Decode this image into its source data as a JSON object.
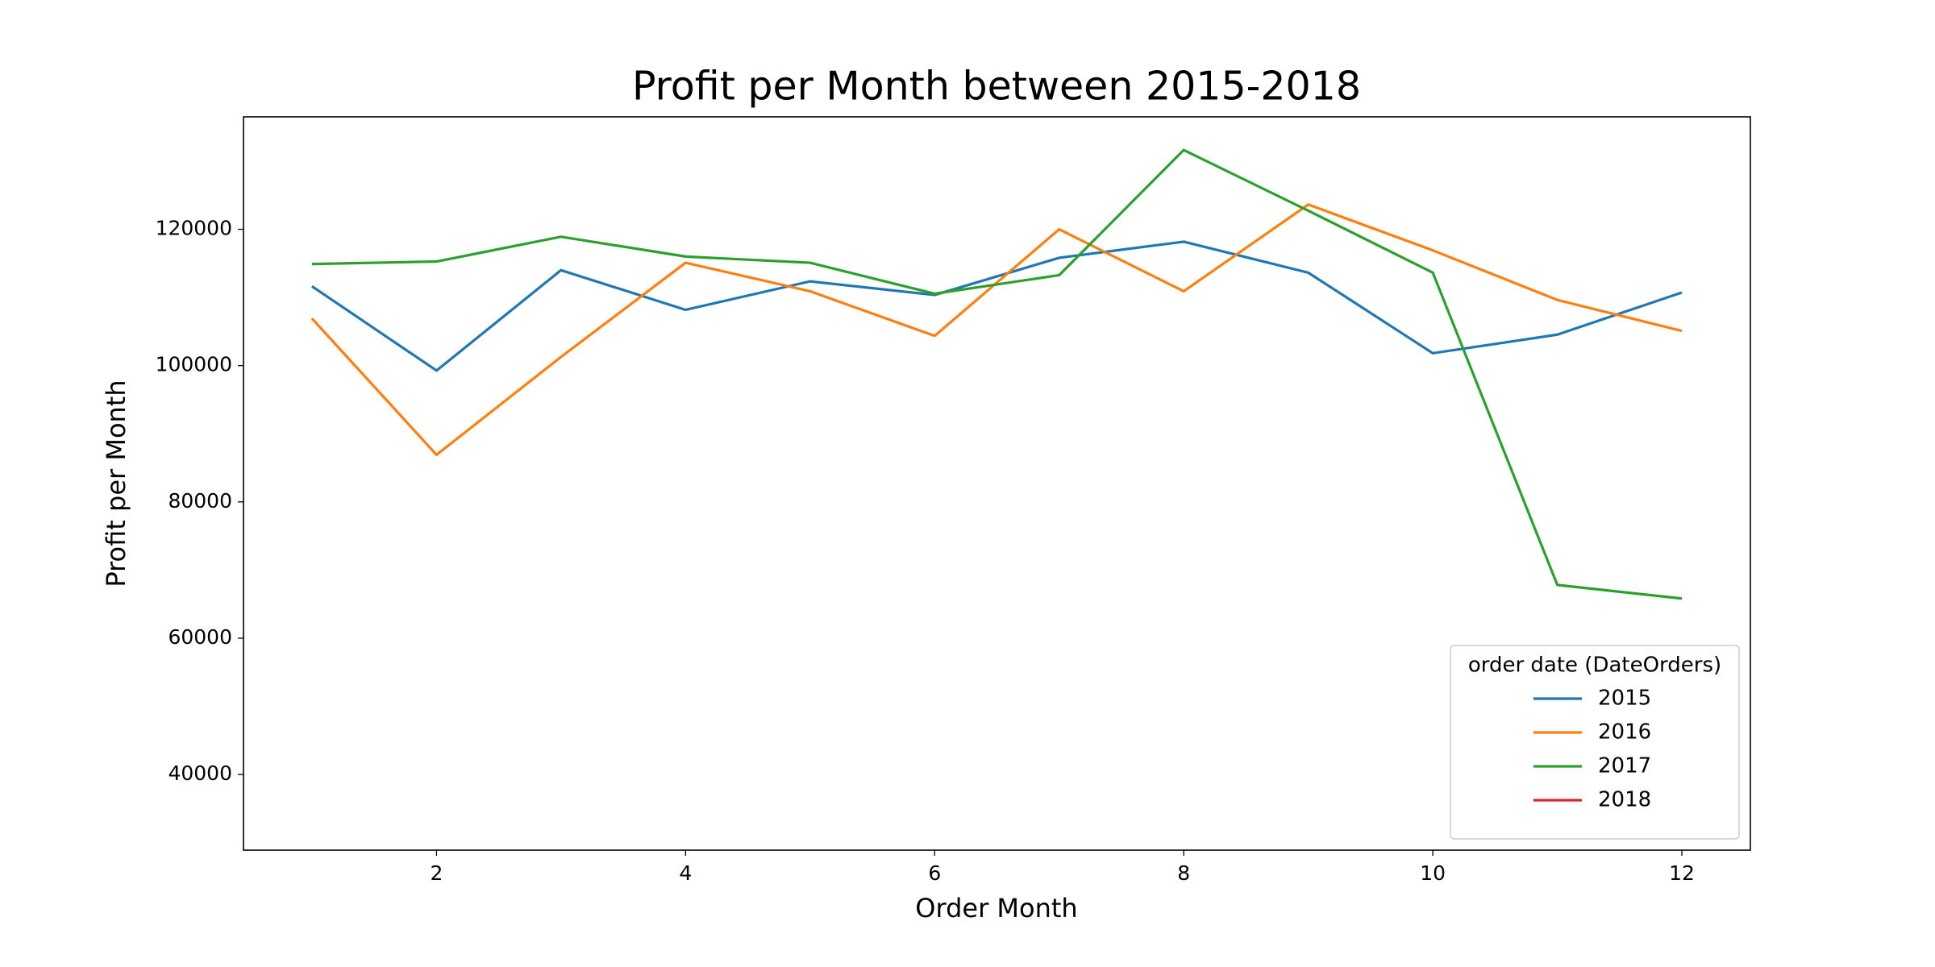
{
  "chart_data": {
    "type": "line",
    "title": "Profit per Month between 2015-2018",
    "x_label": "Order Month",
    "y_label": "Profit per Month",
    "x": [
      1,
      2,
      3,
      4,
      5,
      6,
      7,
      8,
      9,
      10,
      11,
      12
    ],
    "series": [
      {
        "name": "2015",
        "color": "#1f77b4",
        "values": [
          111636,
          99273,
          114000,
          108182,
          112364,
          110364,
          115818,
          118182,
          113636,
          101818,
          104545,
          110727
        ]
      },
      {
        "name": "2016",
        "color": "#ff7f0e",
        "values": [
          106909,
          86909,
          101273,
          115091,
          110909,
          104364,
          120000,
          110909,
          123636,
          116909,
          109636,
          105091
        ]
      },
      {
        "name": "2017",
        "color": "#2ca02c",
        "values": [
          114909,
          115273,
          118909,
          116000,
          115091,
          110545,
          113273,
          131636,
          122727,
          113636,
          67818,
          65818
        ]
      },
      {
        "name": "2018",
        "color": "#d62728",
        "values": [
          null,
          null,
          null,
          null,
          null,
          null,
          null,
          null,
          null,
          null,
          null,
          null
        ]
      }
    ],
    "xlim": [
      0.45,
      12.55
    ],
    "ylim": [
      28900,
      136500
    ],
    "xticks": [
      2,
      4,
      6,
      8,
      10,
      12
    ],
    "yticks": [
      40000,
      60000,
      80000,
      100000,
      120000
    ],
    "legend_title": "order date (DateOrders)",
    "legend_position": "lower right",
    "grid": false
  }
}
